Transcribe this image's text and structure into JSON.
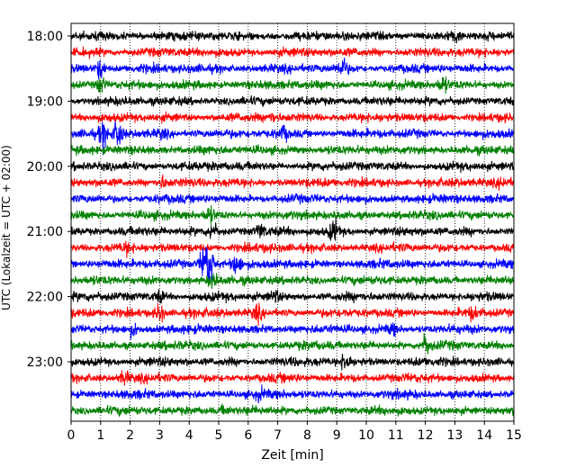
{
  "chart_data": {
    "type": "line",
    "title": "",
    "xlabel": "Zeit  [min]",
    "ylabel": "UTC (Lokalzeit = UTC + 02:00)",
    "xlim": [
      0,
      15
    ],
    "x_ticks": [
      0,
      1,
      2,
      3,
      4,
      5,
      6,
      7,
      8,
      9,
      10,
      11,
      12,
      13,
      14,
      15
    ],
    "y_tick_labels": [
      "18:00",
      "19:00",
      "20:00",
      "21:00",
      "22:00",
      "23:00"
    ],
    "y_tick_rows": [
      0,
      4,
      8,
      12,
      16,
      20
    ],
    "grid": "vertical dotted",
    "series_colors": [
      "#000000",
      "#ff0000",
      "#0000ff",
      "#008000"
    ],
    "trace_count": 24,
    "trace_interval_min": 15,
    "events": [
      {
        "row": 0,
        "min": 13.0,
        "amp": 1.4
      },
      {
        "row": 2,
        "min": 1.0,
        "amp": 1.8
      },
      {
        "row": 2,
        "min": 9.2,
        "amp": 1.8
      },
      {
        "row": 3,
        "min": 1.0,
        "amp": 1.8
      },
      {
        "row": 3,
        "min": 12.6,
        "amp": 1.6
      },
      {
        "row": 5,
        "min": 6.8,
        "amp": 1.3
      },
      {
        "row": 6,
        "min": 1.1,
        "amp": 2.0
      },
      {
        "row": 6,
        "min": 1.6,
        "amp": 2.2
      },
      {
        "row": 6,
        "min": 3.1,
        "amp": 1.3
      },
      {
        "row": 6,
        "min": 7.2,
        "amp": 1.5
      },
      {
        "row": 9,
        "min": 3.1,
        "amp": 1.4
      },
      {
        "row": 9,
        "min": 14.6,
        "amp": 1.3
      },
      {
        "row": 11,
        "min": 4.7,
        "amp": 1.6
      },
      {
        "row": 12,
        "min": 4.8,
        "amp": 1.7
      },
      {
        "row": 12,
        "min": 6.4,
        "amp": 1.5
      },
      {
        "row": 12,
        "min": 8.9,
        "amp": 1.9
      },
      {
        "row": 13,
        "min": 1.9,
        "amp": 1.3
      },
      {
        "row": 14,
        "min": 4.5,
        "amp": 2.6
      },
      {
        "row": 14,
        "min": 4.7,
        "amp": 2.8
      },
      {
        "row": 14,
        "min": 5.6,
        "amp": 1.8
      },
      {
        "row": 15,
        "min": 4.8,
        "amp": 1.6
      },
      {
        "row": 16,
        "min": 3.0,
        "amp": 1.4
      },
      {
        "row": 16,
        "min": 6.9,
        "amp": 1.4
      },
      {
        "row": 17,
        "min": 3.0,
        "amp": 1.8
      },
      {
        "row": 17,
        "min": 6.3,
        "amp": 1.6
      },
      {
        "row": 17,
        "min": 13.6,
        "amp": 1.4
      },
      {
        "row": 18,
        "min": 2.1,
        "amp": 1.5
      },
      {
        "row": 18,
        "min": 10.9,
        "amp": 1.4
      },
      {
        "row": 19,
        "min": 12.0,
        "amp": 1.8
      },
      {
        "row": 20,
        "min": 9.3,
        "amp": 1.8
      },
      {
        "row": 21,
        "min": 1.8,
        "amp": 1.5
      },
      {
        "row": 22,
        "min": 6.4,
        "amp": 1.3
      },
      {
        "row": 23,
        "min": 5.2,
        "amp": 1.3
      }
    ]
  }
}
